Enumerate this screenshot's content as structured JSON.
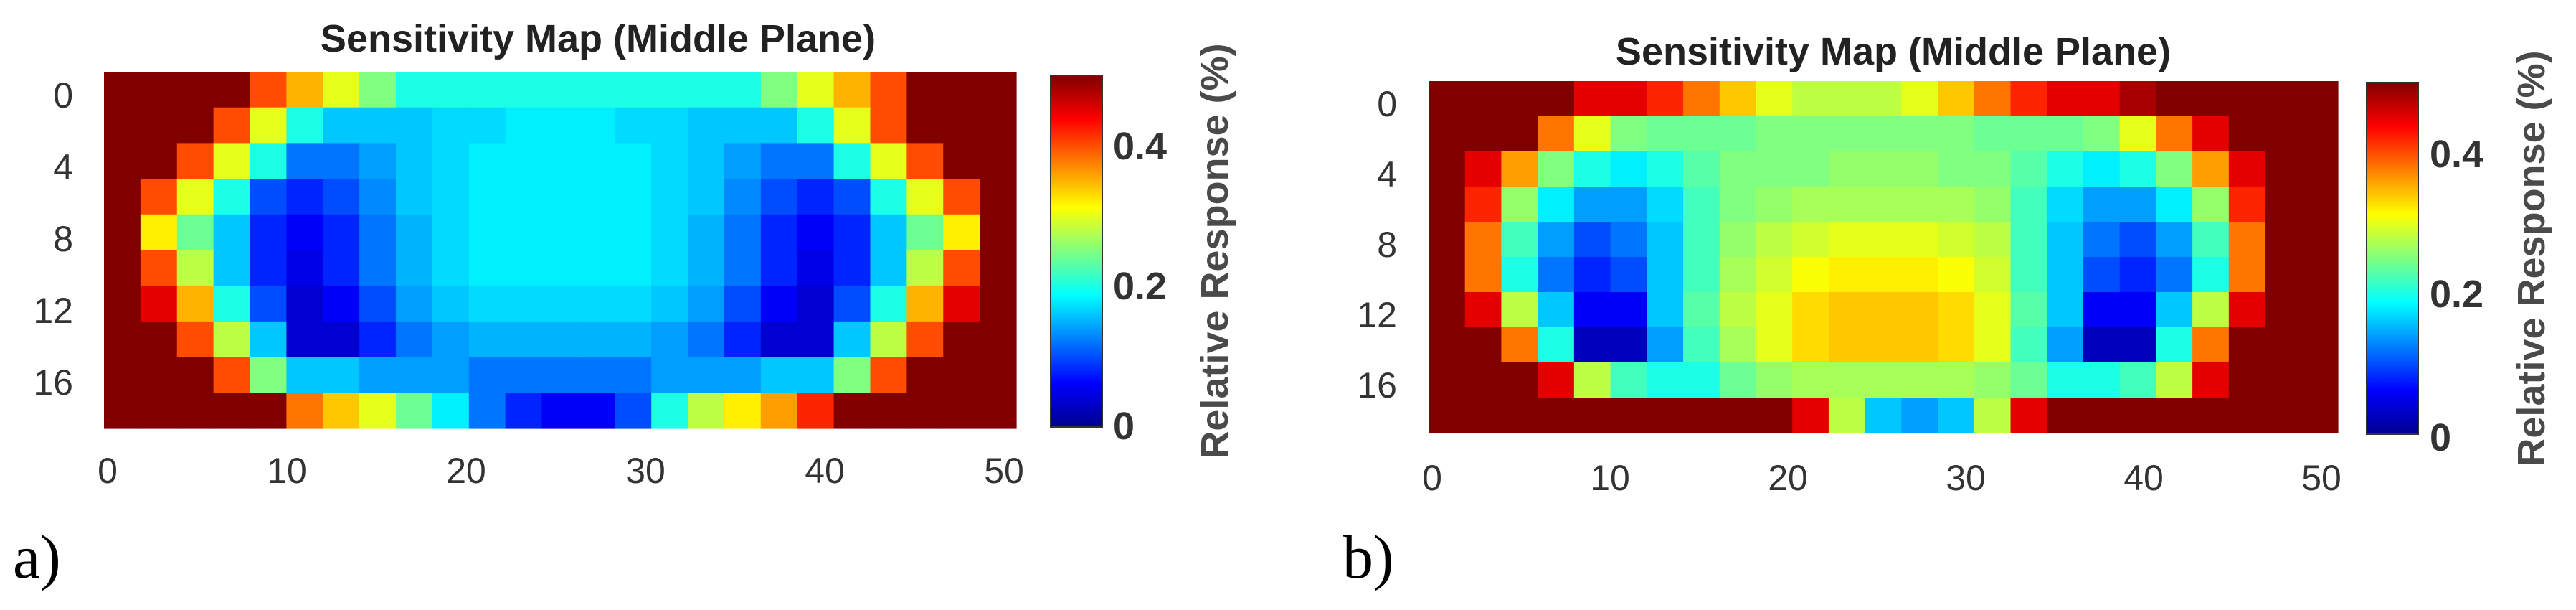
{
  "chart_data": [
    {
      "type": "heatmap",
      "panel_label": "a)",
      "title": "Sensitivity Map (Middle Plane)",
      "xticks": [
        "0",
        "10",
        "20",
        "30",
        "40",
        "50"
      ],
      "yticks": [
        "0",
        "4",
        "8",
        "12",
        "16"
      ],
      "xlim": [
        -0.5,
        50.5
      ],
      "ylim": [
        -0.5,
        18.5
      ],
      "colorbar": {
        "label": "Relative Response (%)",
        "range": [
          0,
          0.5
        ],
        "ticks": [
          "0",
          "0.2",
          "0.4"
        ]
      },
      "grid": {
        "cols": 25,
        "rows": 10,
        "col_width_units": 2,
        "row_height_units": 2,
        "values": [
          [
            0.5,
            0.5,
            0.5,
            0.5,
            0.4,
            0.35,
            0.3,
            0.25,
            0.2,
            0.2,
            0.2,
            0.2,
            0.2,
            0.2,
            0.2,
            0.2,
            0.2,
            0.2,
            0.25,
            0.3,
            0.35,
            0.4,
            0.5,
            0.5,
            0.5
          ],
          [
            0.5,
            0.5,
            0.5,
            0.4,
            0.3,
            0.2,
            0.16,
            0.16,
            0.16,
            0.17,
            0.17,
            0.18,
            0.18,
            0.18,
            0.17,
            0.17,
            0.16,
            0.16,
            0.16,
            0.2,
            0.3,
            0.4,
            0.5,
            0.5,
            0.5
          ],
          [
            0.5,
            0.5,
            0.4,
            0.3,
            0.2,
            0.12,
            0.12,
            0.14,
            0.16,
            0.17,
            0.18,
            0.18,
            0.18,
            0.18,
            0.18,
            0.17,
            0.16,
            0.14,
            0.12,
            0.12,
            0.2,
            0.3,
            0.4,
            0.5,
            0.5
          ],
          [
            0.5,
            0.4,
            0.3,
            0.2,
            0.1,
            0.08,
            0.1,
            0.13,
            0.16,
            0.17,
            0.18,
            0.18,
            0.18,
            0.18,
            0.18,
            0.17,
            0.16,
            0.13,
            0.1,
            0.08,
            0.1,
            0.2,
            0.3,
            0.4,
            0.5
          ],
          [
            0.5,
            0.32,
            0.24,
            0.16,
            0.08,
            0.06,
            0.08,
            0.12,
            0.15,
            0.17,
            0.18,
            0.18,
            0.18,
            0.18,
            0.18,
            0.17,
            0.15,
            0.12,
            0.08,
            0.06,
            0.08,
            0.16,
            0.24,
            0.32,
            0.5
          ],
          [
            0.5,
            0.4,
            0.28,
            0.16,
            0.08,
            0.05,
            0.08,
            0.12,
            0.15,
            0.17,
            0.18,
            0.18,
            0.18,
            0.18,
            0.18,
            0.17,
            0.15,
            0.12,
            0.08,
            0.05,
            0.08,
            0.16,
            0.28,
            0.4,
            0.5
          ],
          [
            0.5,
            0.45,
            0.35,
            0.2,
            0.1,
            0.04,
            0.06,
            0.1,
            0.14,
            0.16,
            0.17,
            0.17,
            0.17,
            0.17,
            0.17,
            0.16,
            0.14,
            0.1,
            0.06,
            0.04,
            0.1,
            0.2,
            0.35,
            0.45,
            0.5
          ],
          [
            0.5,
            0.5,
            0.4,
            0.28,
            0.16,
            0.04,
            0.04,
            0.08,
            0.12,
            0.14,
            0.15,
            0.15,
            0.15,
            0.15,
            0.15,
            0.14,
            0.12,
            0.08,
            0.04,
            0.04,
            0.16,
            0.28,
            0.4,
            0.5,
            0.5
          ],
          [
            0.5,
            0.5,
            0.5,
            0.4,
            0.25,
            0.16,
            0.16,
            0.14,
            0.14,
            0.14,
            0.12,
            0.12,
            0.12,
            0.12,
            0.12,
            0.14,
            0.14,
            0.14,
            0.16,
            0.16,
            0.25,
            0.4,
            0.5,
            0.5,
            0.5
          ],
          [
            0.5,
            0.5,
            0.5,
            0.5,
            0.5,
            0.38,
            0.34,
            0.3,
            0.24,
            0.18,
            0.12,
            0.08,
            0.06,
            0.06,
            0.1,
            0.2,
            0.28,
            0.32,
            0.36,
            0.42,
            0.5,
            0.5,
            0.5,
            0.5,
            0.5
          ]
        ]
      }
    },
    {
      "type": "heatmap",
      "panel_label": "b)",
      "title": "Sensitivity Map (Middle Plane)",
      "xticks": [
        "0",
        "10",
        "20",
        "30",
        "40",
        "50"
      ],
      "yticks": [
        "0",
        "4",
        "8",
        "12",
        "16"
      ],
      "xlim": [
        -0.5,
        50.5
      ],
      "ylim": [
        -0.5,
        18.5
      ],
      "colorbar": {
        "label": "Relative Response (%)",
        "range": [
          0,
          0.5
        ],
        "ticks": [
          "0",
          "0.2",
          "0.4"
        ]
      },
      "grid": {
        "cols": 25,
        "rows": 10,
        "col_width_units": 2,
        "row_height_units": 2,
        "values": [
          [
            0.5,
            0.5,
            0.5,
            0.5,
            0.45,
            0.45,
            0.42,
            0.38,
            0.34,
            0.3,
            0.28,
            0.28,
            0.28,
            0.3,
            0.34,
            0.38,
            0.42,
            0.45,
            0.45,
            0.48,
            0.5,
            0.5,
            0.5,
            0.5,
            0.5
          ],
          [
            0.5,
            0.5,
            0.5,
            0.38,
            0.3,
            0.25,
            0.24,
            0.24,
            0.24,
            0.25,
            0.25,
            0.25,
            0.25,
            0.25,
            0.25,
            0.24,
            0.24,
            0.24,
            0.25,
            0.3,
            0.38,
            0.45,
            0.5,
            0.5,
            0.5
          ],
          [
            0.5,
            0.45,
            0.36,
            0.25,
            0.2,
            0.18,
            0.2,
            0.23,
            0.25,
            0.25,
            0.25,
            0.26,
            0.26,
            0.26,
            0.25,
            0.25,
            0.23,
            0.2,
            0.18,
            0.2,
            0.25,
            0.36,
            0.45,
            0.5,
            0.5
          ],
          [
            0.5,
            0.42,
            0.26,
            0.18,
            0.14,
            0.14,
            0.17,
            0.22,
            0.25,
            0.26,
            0.27,
            0.27,
            0.27,
            0.27,
            0.27,
            0.26,
            0.22,
            0.17,
            0.14,
            0.14,
            0.18,
            0.26,
            0.42,
            0.5,
            0.5
          ],
          [
            0.5,
            0.38,
            0.22,
            0.14,
            0.1,
            0.12,
            0.16,
            0.22,
            0.26,
            0.28,
            0.29,
            0.3,
            0.3,
            0.3,
            0.29,
            0.28,
            0.22,
            0.16,
            0.12,
            0.1,
            0.14,
            0.22,
            0.38,
            0.5,
            0.5
          ],
          [
            0.5,
            0.38,
            0.2,
            0.12,
            0.08,
            0.1,
            0.16,
            0.22,
            0.27,
            0.29,
            0.31,
            0.32,
            0.32,
            0.32,
            0.31,
            0.29,
            0.22,
            0.16,
            0.1,
            0.08,
            0.12,
            0.2,
            0.38,
            0.5,
            0.5
          ],
          [
            0.5,
            0.45,
            0.28,
            0.16,
            0.06,
            0.06,
            0.16,
            0.23,
            0.28,
            0.3,
            0.33,
            0.34,
            0.34,
            0.34,
            0.33,
            0.3,
            0.23,
            0.16,
            0.06,
            0.06,
            0.16,
            0.28,
            0.45,
            0.5,
            0.5
          ],
          [
            0.5,
            0.5,
            0.38,
            0.2,
            0.03,
            0.03,
            0.14,
            0.22,
            0.27,
            0.3,
            0.33,
            0.34,
            0.34,
            0.34,
            0.33,
            0.3,
            0.22,
            0.14,
            0.03,
            0.03,
            0.2,
            0.38,
            0.5,
            0.5,
            0.5
          ],
          [
            0.5,
            0.5,
            0.5,
            0.45,
            0.28,
            0.22,
            0.2,
            0.2,
            0.24,
            0.26,
            0.27,
            0.27,
            0.27,
            0.27,
            0.27,
            0.26,
            0.24,
            0.2,
            0.2,
            0.22,
            0.28,
            0.45,
            0.5,
            0.5,
            0.5
          ],
          [
            0.5,
            0.5,
            0.5,
            0.5,
            0.5,
            0.5,
            0.5,
            0.5,
            0.5,
            0.5,
            0.45,
            0.28,
            0.16,
            0.14,
            0.16,
            0.28,
            0.45,
            0.5,
            0.5,
            0.5,
            0.5,
            0.5,
            0.5,
            0.5,
            0.5
          ]
        ]
      }
    }
  ]
}
